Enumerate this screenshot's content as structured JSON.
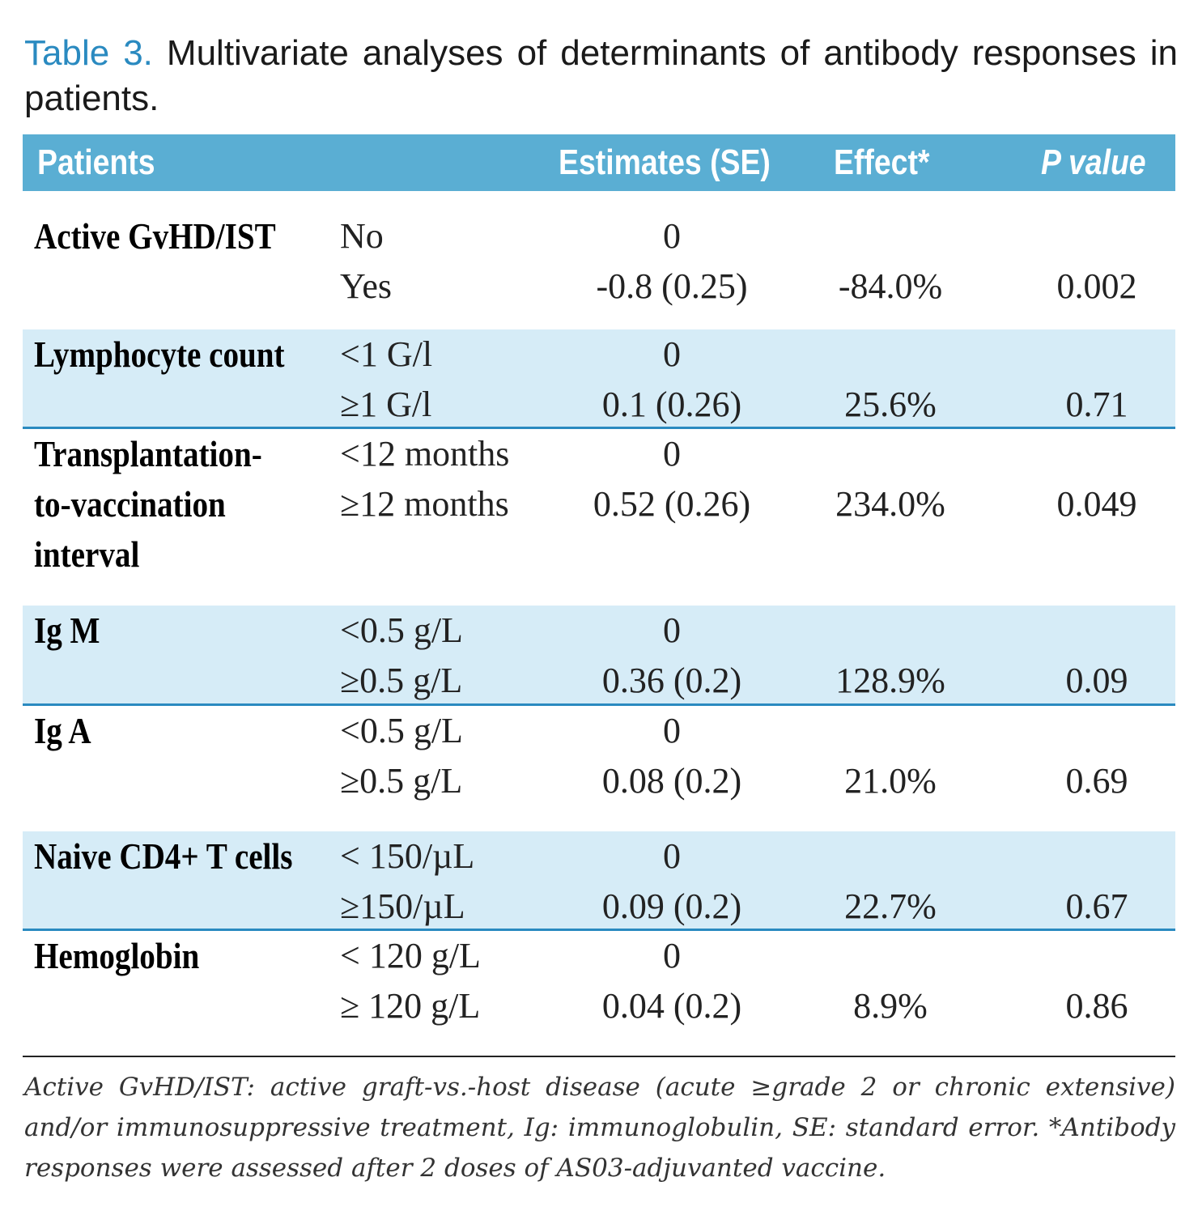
{
  "title": {
    "label": "Table 3.",
    "text": "Multivariate analyses of determinants of antibody responses in patients."
  },
  "header": {
    "patients": "Patients",
    "estimates": "Estimates (SE)",
    "effect": "Effect*",
    "p": "P value"
  },
  "colors": {
    "header_bg": "#5aaed3",
    "shade": "#d6ecf7",
    "accent": "#2a8ac0"
  },
  "groups": [
    {
      "label": "Active GvHD/IST",
      "shaded": false,
      "rows": [
        {
          "sub": "No",
          "est": "0",
          "eff": "",
          "p": ""
        },
        {
          "sub": "Yes",
          "est": "-0.8 (0.25)",
          "eff": "-84.0%",
          "p": "0.002"
        }
      ]
    },
    {
      "label": "Lymphocyte count",
      "shaded": true,
      "rows": [
        {
          "sub": "<1 G/l",
          "est": "0",
          "eff": "",
          "p": ""
        },
        {
          "sub": "≥1 G/l",
          "est": "0.1 (0.26)",
          "eff": "25.6%",
          "p": "0.71"
        }
      ]
    },
    {
      "label": "Transplantation-\nto-vaccination\ninterval",
      "shaded": false,
      "rows": [
        {
          "sub": "<12 months",
          "est": "0",
          "eff": "",
          "p": ""
        },
        {
          "sub": "≥12 months",
          "est": "0.52 (0.26)",
          "eff": "234.0%",
          "p": "0.049"
        }
      ]
    },
    {
      "label": "Ig M",
      "shaded": true,
      "rows": [
        {
          "sub": "<0.5 g/L",
          "est": "0",
          "eff": "",
          "p": ""
        },
        {
          "sub": "≥0.5 g/L",
          "est": "0.36 (0.2)",
          "eff": "128.9%",
          "p": "0.09"
        }
      ]
    },
    {
      "label": "Ig A",
      "shaded": false,
      "rows": [
        {
          "sub": "<0.5 g/L",
          "est": "0",
          "eff": "",
          "p": ""
        },
        {
          "sub": "≥0.5 g/L",
          "est": "0.08 (0.2)",
          "eff": "21.0%",
          "p": "0.69"
        }
      ]
    },
    {
      "label": "Naive CD4+ T cells",
      "shaded": true,
      "rows": [
        {
          "sub": "< 150/µL",
          "est": "0",
          "eff": "",
          "p": ""
        },
        {
          "sub": "≥150/µL",
          "est": "0.09 (0.2)",
          "eff": "22.7%",
          "p": "0.67"
        }
      ]
    },
    {
      "label": "Hemoglobin",
      "shaded": false,
      "rows": [
        {
          "sub": "< 120 g/L",
          "est": "0",
          "eff": "",
          "p": ""
        },
        {
          "sub": "≥ 120 g/L",
          "est": "0.04 (0.2)",
          "eff": "8.9%",
          "p": "0.86"
        }
      ]
    }
  ],
  "footnote": "Active GvHD/IST: active graft-vs.-host disease (acute ≥grade 2 or chronic extensive) and/or immunosuppressive treatment, Ig: immunoglobulin, SE: standard error. *Antibody responses were assessed after 2 doses of AS03-adjuvanted vaccine."
}
